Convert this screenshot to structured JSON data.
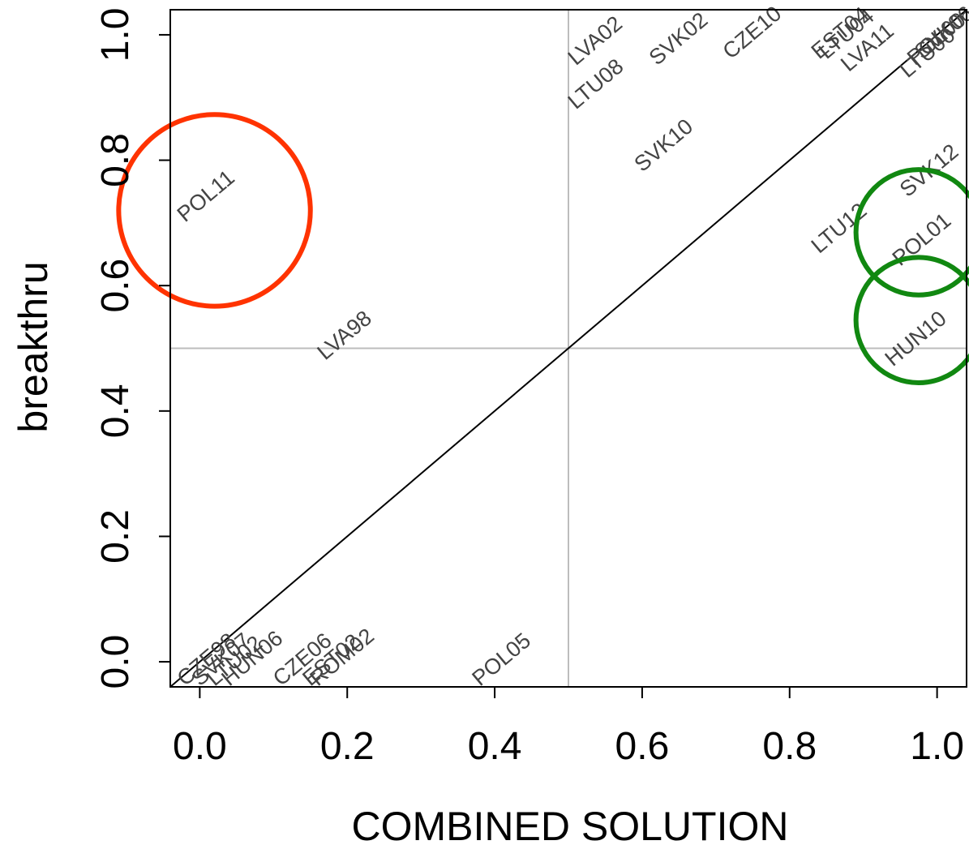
{
  "chart_data": {
    "type": "scatter",
    "title": "",
    "xlabel": "COMBINED SOLUTION",
    "ylabel": "breakthru",
    "xlim": [
      -0.04,
      1.04
    ],
    "ylim": [
      -0.04,
      1.04
    ],
    "xticks": [
      "0.0",
      "0.2",
      "0.4",
      "0.6",
      "0.8",
      "1.0"
    ],
    "yticks": [
      "0.0",
      "0.2",
      "0.4",
      "0.6",
      "0.8",
      "1.0"
    ],
    "reference_lines": {
      "diagonal": true,
      "x": 0.5,
      "y": 0.5
    },
    "points": [
      {
        "label": "LVA02",
        "x": 0.51,
        "y": 0.95
      },
      {
        "label": "SVK02",
        "x": 0.62,
        "y": 0.95
      },
      {
        "label": "CZE10",
        "x": 0.72,
        "y": 0.96
      },
      {
        "label": "EST04",
        "x": 0.84,
        "y": 0.96
      },
      {
        "label": "LTU04",
        "x": 0.85,
        "y": 0.96
      },
      {
        "label": "LVA11",
        "x": 0.88,
        "y": 0.94
      },
      {
        "label": "LTU08",
        "x": 0.51,
        "y": 0.88
      },
      {
        "label": "LTU00",
        "x": 0.96,
        "y": 0.93
      },
      {
        "label": "POL00",
        "x": 0.97,
        "y": 0.95
      },
      {
        "label": "SVK06",
        "x": 0.98,
        "y": 0.96
      },
      {
        "label": "SVK10",
        "x": 0.6,
        "y": 0.78
      },
      {
        "label": "SVK12",
        "x": 0.96,
        "y": 0.74
      },
      {
        "label": "POL11",
        "x": -0.02,
        "y": 0.7
      },
      {
        "label": "LTU12",
        "x": 0.84,
        "y": 0.65
      },
      {
        "label": "POL01",
        "x": 0.95,
        "y": 0.63
      },
      {
        "label": "LVA98",
        "x": 0.17,
        "y": 0.48
      },
      {
        "label": "HUN10",
        "x": 0.94,
        "y": 0.47
      },
      {
        "label": "POL05",
        "x": 0.38,
        "y": -0.04
      },
      {
        "label": "CZE06",
        "x": 0.11,
        "y": -0.04
      },
      {
        "label": "ROM02",
        "x": 0.16,
        "y": -0.04
      },
      {
        "label": "EST02",
        "x": 0.15,
        "y": -0.04
      },
      {
        "label": "HUN06",
        "x": 0.04,
        "y": -0.04
      },
      {
        "label": "LTU02",
        "x": 0.02,
        "y": -0.04
      },
      {
        "label": "SVK07",
        "x": 0.0,
        "y": -0.04
      },
      {
        "label": "CZE98",
        "x": -0.02,
        "y": -0.04
      }
    ],
    "annotations": [
      {
        "shape": "circle",
        "color": "#ff3300",
        "x": 0.02,
        "y": 0.72,
        "r": 0.13
      },
      {
        "shape": "circle",
        "color": "#118811",
        "x": 0.975,
        "y": 0.685,
        "r": 0.085
      },
      {
        "shape": "circle",
        "color": "#118811",
        "x": 0.975,
        "y": 0.545,
        "r": 0.085
      }
    ]
  }
}
